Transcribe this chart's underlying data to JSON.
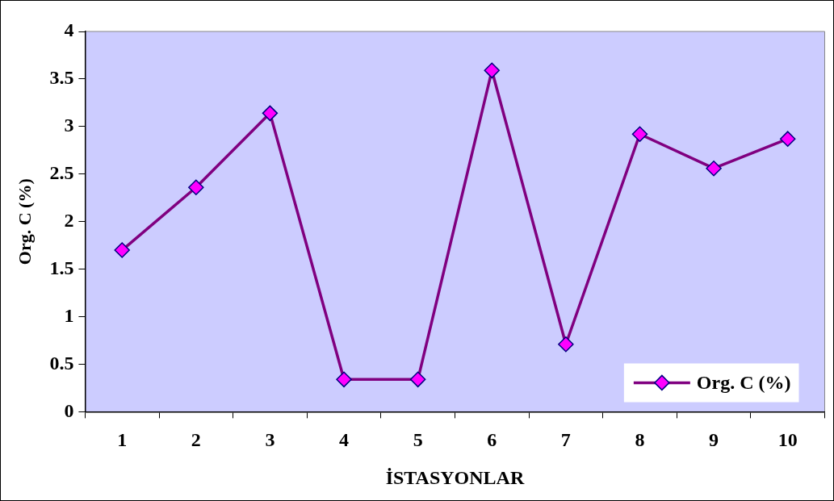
{
  "chart_data": {
    "type": "line",
    "xlabel": "İSTASYONLAR",
    "ylabel": "Org. C (%)",
    "categories": [
      "1",
      "2",
      "3",
      "4",
      "5",
      "6",
      "7",
      "8",
      "9",
      "10"
    ],
    "series": [
      {
        "name": "Org. C (%)",
        "color": "#800080",
        "values": [
          1.7,
          2.36,
          3.14,
          0.34,
          0.34,
          3.59,
          0.71,
          2.92,
          2.56,
          2.87
        ]
      }
    ],
    "ylim": [
      0,
      4
    ],
    "yticks": [
      0,
      0.5,
      1,
      1.5,
      2,
      2.5,
      3,
      3.5,
      4
    ],
    "grid": false,
    "legend": "bottom right",
    "marker": "diamond",
    "line_style": "solid"
  }
}
